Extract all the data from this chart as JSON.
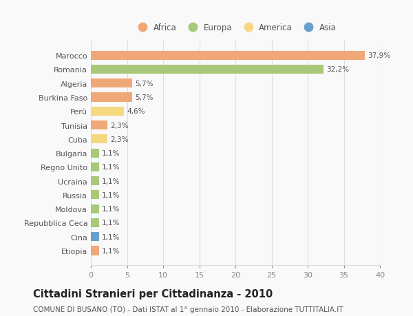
{
  "countries": [
    "Marocco",
    "Romania",
    "Algeria",
    "Burkina Faso",
    "Perù",
    "Tunisia",
    "Cuba",
    "Bulgaria",
    "Regno Unito",
    "Ucraina",
    "Russia",
    "Moldova",
    "Repubblica Ceca",
    "Cina",
    "Etiopia"
  ],
  "values": [
    37.9,
    32.2,
    5.7,
    5.7,
    4.6,
    2.3,
    2.3,
    1.1,
    1.1,
    1.1,
    1.1,
    1.1,
    1.1,
    1.1,
    1.1
  ],
  "labels": [
    "37,9%",
    "32,2%",
    "5,7%",
    "5,7%",
    "4,6%",
    "2,3%",
    "2,3%",
    "1,1%",
    "1,1%",
    "1,1%",
    "1,1%",
    "1,1%",
    "1,1%",
    "1,1%",
    "1,1%"
  ],
  "continents": [
    "Africa",
    "Europa",
    "Africa",
    "Africa",
    "America",
    "Africa",
    "America",
    "Europa",
    "Europa",
    "Europa",
    "Europa",
    "Europa",
    "Europa",
    "Asia",
    "Africa"
  ],
  "continent_colors": {
    "Africa": "#F0A878",
    "Europa": "#A8C87A",
    "America": "#F5D880",
    "Asia": "#6A9FCA"
  },
  "legend_order": [
    "Africa",
    "Europa",
    "America",
    "Asia"
  ],
  "title": "Cittadini Stranieri per Cittadinanza - 2010",
  "subtitle": "COMUNE DI BUSANO (TO) - Dati ISTAT al 1° gennaio 2010 - Elaborazione TUTTITALIA.IT",
  "xlim": [
    0,
    40
  ],
  "xticks": [
    0,
    5,
    10,
    15,
    20,
    25,
    30,
    35,
    40
  ],
  "background_color": "#f9f9f9",
  "grid_color": "#dddddd",
  "title_fontsize": 10.5,
  "subtitle_fontsize": 7.5,
  "label_fontsize": 7.5,
  "tick_fontsize": 8,
  "bar_height": 0.65
}
